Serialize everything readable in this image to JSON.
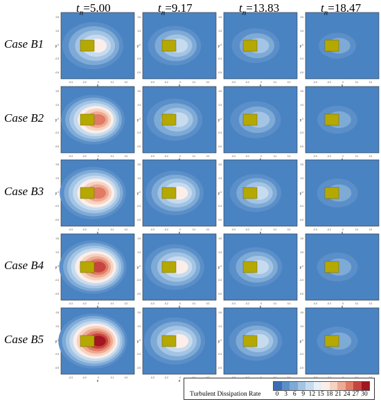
{
  "chart_data": {
    "type": "heatmap",
    "description_colors": [
      "#3a6db5",
      "#5b8fc9",
      "#7eaad6",
      "#a3c4e4",
      "#c7dbef",
      "#e7eff8",
      "#fbeee8",
      "#f6d2c2",
      "#eeaa93",
      "#e07b66",
      "#c7453f",
      "#a31520"
    ],
    "columns": [
      {
        "prefix": "t",
        "sub": "n",
        "value": "=5.00"
      },
      {
        "prefix": "t",
        "sub": "n",
        "value": "=9.17"
      },
      {
        "prefix": "t",
        "sub": "n",
        "value": "=13.83"
      },
      {
        "prefix": "t",
        "sub": "n",
        "value": "=18.47"
      }
    ],
    "rows": [
      "Case B1",
      "Case B2",
      "Case B3",
      "Case B4",
      "Case B5"
    ],
    "axis_x_label": "x",
    "axis_y_label": "y",
    "x_ticks": [
      "-0.3",
      "-0.2",
      "0",
      "0.1",
      "0.2"
    ],
    "y_ticks": [
      "0.5",
      "0.3",
      "0",
      "-0.3",
      "-0.5"
    ],
    "legend": {
      "title": "Turbulent Dissipation Rate",
      "ticks": [
        "0",
        "3",
        "6",
        "9",
        "12",
        "15",
        "18",
        "21",
        "24",
        "27",
        "30"
      ]
    },
    "body_color": "#b5a800",
    "field_color": "#4a83c1",
    "peak_levels": [
      [
        15,
        12,
        9,
        6
      ],
      [
        24,
        12,
        9,
        6
      ],
      [
        24,
        15,
        12,
        6
      ],
      [
        28,
        15,
        12,
        6
      ],
      [
        30,
        15,
        12,
        6
      ]
    ],
    "wake_extent": [
      [
        1.0,
        0.85,
        0.75,
        0.55
      ],
      [
        1.05,
        0.9,
        0.8,
        0.6
      ],
      [
        1.1,
        0.95,
        0.82,
        0.62
      ],
      [
        1.12,
        0.97,
        0.85,
        0.62
      ],
      [
        1.15,
        1.0,
        0.85,
        0.62
      ]
    ]
  }
}
